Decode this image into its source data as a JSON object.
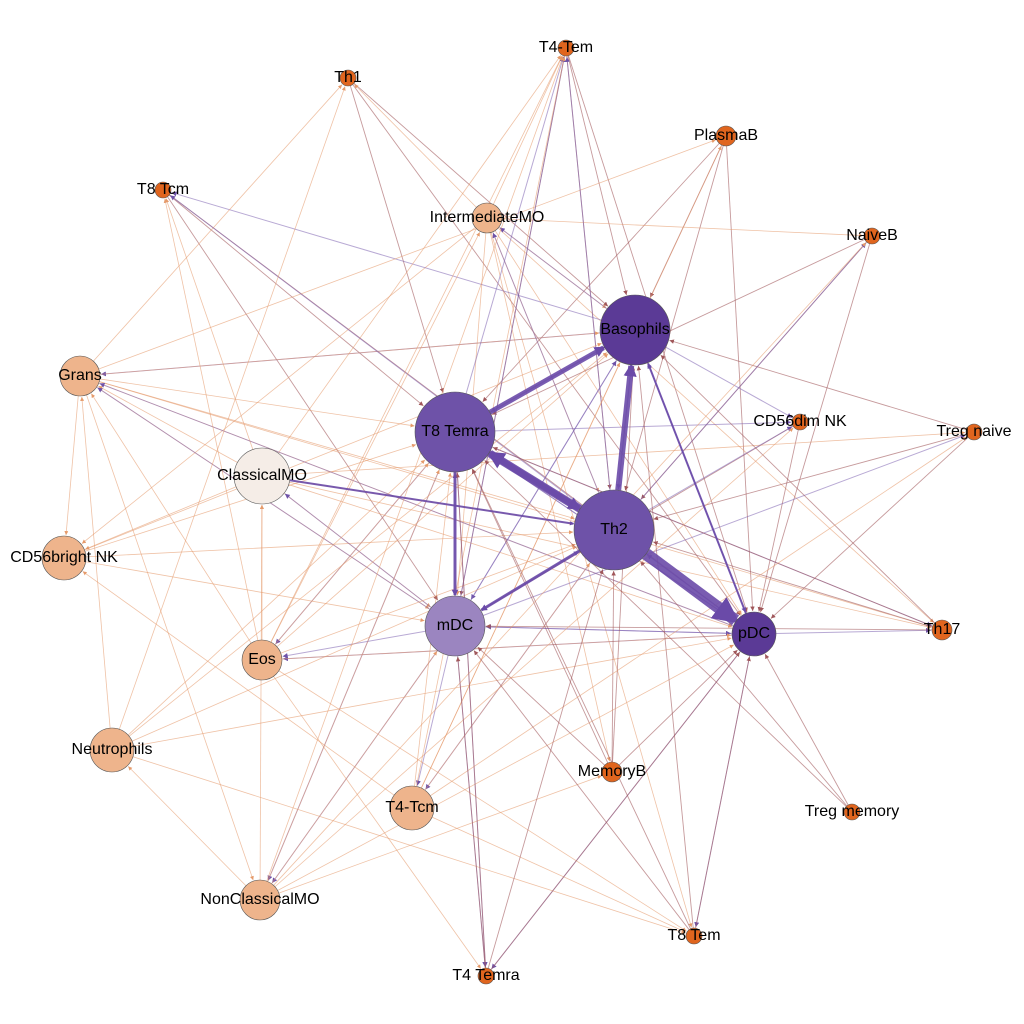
{
  "nodes": [
    {
      "label": "Th1"
    },
    {
      "label": "T4-Tem"
    },
    {
      "label": "PlasmaB"
    },
    {
      "label": "T8 Tcm"
    },
    {
      "label": "IntermediateMO"
    },
    {
      "label": "NaiveB"
    },
    {
      "label": "Basophils"
    },
    {
      "label": "Grans"
    },
    {
      "label": "T8 Temra"
    },
    {
      "label": "CD56dim NK"
    },
    {
      "label": "Treg naive"
    },
    {
      "label": "ClassicalMO"
    },
    {
      "label": "Th2"
    },
    {
      "label": "CD56bright NK"
    },
    {
      "label": "mDC"
    },
    {
      "label": "pDC"
    },
    {
      "label": "Th17"
    },
    {
      "label": "Eos"
    },
    {
      "label": "Neutrophils"
    },
    {
      "label": "MemoryB"
    },
    {
      "label": "T4-Tcm"
    },
    {
      "label": "Treg memory"
    },
    {
      "label": "NonClassicalMO"
    },
    {
      "label": "T8 Tem"
    },
    {
      "label": "T4 Temra"
    }
  ]
}
